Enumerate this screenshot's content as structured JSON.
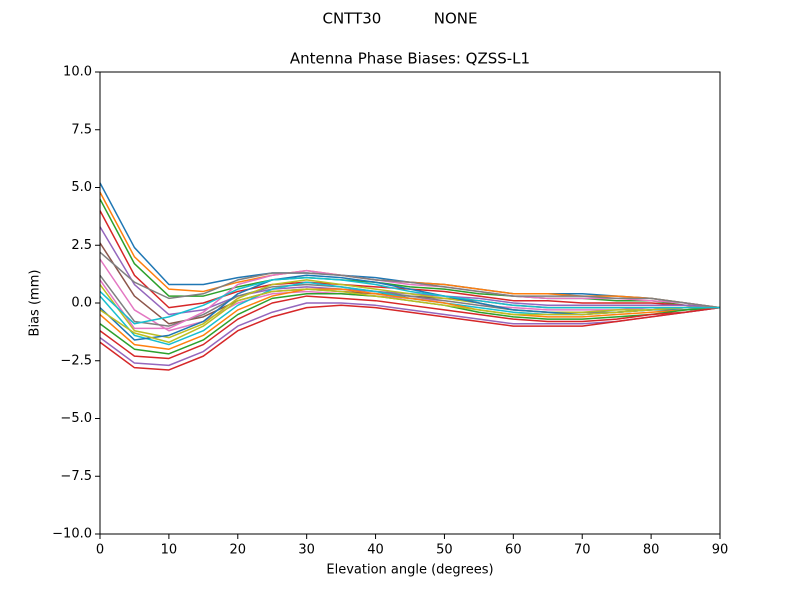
{
  "chart_data": {
    "type": "line",
    "suptitle": "CNTT30           NONE",
    "title": "Antenna Phase Biases: QZSS-L1",
    "xlabel": "Elevation angle (degrees)",
    "ylabel": "Bias (mm)",
    "x": [
      0,
      5,
      10,
      15,
      20,
      25,
      30,
      35,
      40,
      45,
      50,
      55,
      60,
      65,
      70,
      75,
      80,
      85,
      90
    ],
    "xlim": [
      0,
      90
    ],
    "xticks": [
      0,
      10,
      20,
      30,
      40,
      50,
      60,
      70,
      80,
      90
    ],
    "ylim": [
      -10,
      10
    ],
    "yticks": [
      {
        "value": -10,
        "label": "−10.0"
      },
      {
        "value": -7.5,
        "label": "−7.5"
      },
      {
        "value": -5,
        "label": "−5.0"
      },
      {
        "value": -2.5,
        "label": "−2.5"
      },
      {
        "value": 0,
        "label": "0.0"
      },
      {
        "value": 2.5,
        "label": "2.5"
      },
      {
        "value": 5,
        "label": "5.0"
      },
      {
        "value": 7.5,
        "label": "7.5"
      },
      {
        "value": 10,
        "label": "10.0"
      }
    ],
    "grid": false,
    "series": [
      {
        "color": "#1f77b4",
        "values": [
          5.2,
          2.4,
          0.8,
          0.8,
          1.1,
          1.3,
          1.3,
          1.2,
          1.1,
          0.9,
          0.8,
          0.6,
          0.4,
          0.4,
          0.4,
          0.3,
          0.2,
          0.0,
          -0.2
        ]
      },
      {
        "color": "#ff7f0e",
        "values": [
          4.8,
          2.0,
          0.6,
          0.5,
          0.9,
          1.2,
          1.4,
          1.2,
          1.0,
          0.9,
          0.8,
          0.6,
          0.4,
          0.4,
          0.3,
          0.3,
          0.2,
          0.0,
          -0.2
        ]
      },
      {
        "color": "#2ca02c",
        "values": [
          4.5,
          1.7,
          0.3,
          0.3,
          0.7,
          1.0,
          1.1,
          1.0,
          0.9,
          0.7,
          0.6,
          0.4,
          0.3,
          0.2,
          0.2,
          0.1,
          0.1,
          -0.1,
          -0.2
        ]
      },
      {
        "color": "#d62728",
        "values": [
          4.0,
          1.2,
          -0.2,
          0.0,
          0.5,
          0.8,
          0.9,
          0.8,
          0.7,
          0.6,
          0.5,
          0.3,
          0.1,
          0.1,
          0.0,
          0.0,
          0.0,
          -0.1,
          -0.2
        ]
      },
      {
        "color": "#9467bd",
        "values": [
          3.3,
          0.8,
          -0.5,
          -0.3,
          0.3,
          0.6,
          0.7,
          0.6,
          0.5,
          0.4,
          0.3,
          0.2,
          0.0,
          -0.1,
          -0.1,
          -0.1,
          -0.1,
          -0.1,
          -0.2
        ]
      },
      {
        "color": "#8c564b",
        "values": [
          2.6,
          0.3,
          -0.9,
          -0.6,
          0.1,
          0.5,
          0.6,
          0.5,
          0.4,
          0.3,
          0.2,
          0.1,
          -0.1,
          -0.2,
          -0.2,
          -0.2,
          -0.2,
          -0.2,
          -0.2
        ]
      },
      {
        "color": "#e377c2",
        "values": [
          1.9,
          -0.3,
          -1.2,
          -0.8,
          0.0,
          0.4,
          0.5,
          0.4,
          0.3,
          0.2,
          0.1,
          -0.1,
          -0.2,
          -0.3,
          -0.3,
          -0.3,
          -0.2,
          -0.2,
          -0.2
        ]
      },
      {
        "color": "#7f7f7f",
        "values": [
          1.2,
          -0.8,
          -1.0,
          -0.5,
          0.3,
          0.7,
          0.8,
          0.7,
          0.5,
          0.3,
          0.1,
          -0.1,
          -0.3,
          -0.4,
          -0.4,
          -0.4,
          -0.3,
          -0.2,
          -0.2
        ]
      },
      {
        "color": "#bcbd22",
        "values": [
          0.8,
          -1.2,
          -1.5,
          -0.9,
          0.2,
          0.8,
          1.0,
          0.8,
          0.6,
          0.4,
          0.2,
          0.0,
          -0.3,
          -0.4,
          -0.4,
          -0.3,
          -0.3,
          -0.2,
          -0.2
        ]
      },
      {
        "color": "#17becf",
        "values": [
          0.3,
          -1.4,
          -1.8,
          -1.2,
          -0.1,
          0.6,
          0.9,
          0.7,
          0.5,
          0.2,
          0.0,
          -0.2,
          -0.4,
          -0.5,
          -0.5,
          -0.4,
          -0.3,
          -0.2,
          -0.2
        ]
      },
      {
        "color": "#1f77b4",
        "values": [
          -0.2,
          -1.6,
          -1.4,
          -0.8,
          0.4,
          1.0,
          1.2,
          1.1,
          0.9,
          0.6,
          0.3,
          0.0,
          -0.3,
          -0.4,
          -0.5,
          -0.4,
          -0.3,
          -0.3,
          -0.2
        ]
      },
      {
        "color": "#ff7f0e",
        "values": [
          -0.5,
          -1.8,
          -2.0,
          -1.4,
          -0.3,
          0.3,
          0.6,
          0.6,
          0.4,
          0.2,
          0.0,
          -0.3,
          -0.5,
          -0.6,
          -0.6,
          -0.5,
          -0.4,
          -0.3,
          -0.2
        ]
      },
      {
        "color": "#2ca02c",
        "values": [
          -0.9,
          -2.0,
          -2.2,
          -1.6,
          -0.5,
          0.2,
          0.4,
          0.4,
          0.3,
          0.1,
          -0.1,
          -0.4,
          -0.6,
          -0.7,
          -0.7,
          -0.6,
          -0.5,
          -0.3,
          -0.2
        ]
      },
      {
        "color": "#d62728",
        "values": [
          -1.2,
          -2.3,
          -2.4,
          -1.8,
          -0.7,
          0.0,
          0.3,
          0.2,
          0.1,
          -0.1,
          -0.3,
          -0.5,
          -0.7,
          -0.8,
          -0.8,
          -0.7,
          -0.5,
          -0.4,
          -0.2
        ]
      },
      {
        "color": "#9467bd",
        "values": [
          -1.5,
          -2.6,
          -2.7,
          -2.1,
          -1.0,
          -0.4,
          0.0,
          0.0,
          -0.1,
          -0.3,
          -0.5,
          -0.7,
          -0.9,
          -0.9,
          -0.9,
          -0.8,
          -0.6,
          -0.4,
          -0.2
        ]
      },
      {
        "color": "#d62728",
        "values": [
          -1.7,
          -2.8,
          -2.9,
          -2.3,
          -1.2,
          -0.6,
          -0.2,
          -0.1,
          -0.2,
          -0.4,
          -0.6,
          -0.8,
          -1.0,
          -1.0,
          -1.0,
          -0.8,
          -0.6,
          -0.4,
          -0.2
        ]
      },
      {
        "color": "#e377c2",
        "values": [
          1.0,
          -1.1,
          -1.1,
          -0.4,
          0.8,
          1.2,
          1.4,
          1.2,
          1.0,
          0.8,
          0.7,
          0.5,
          0.3,
          0.2,
          0.2,
          0.2,
          0.1,
          0.0,
          -0.2
        ]
      },
      {
        "color": "#7f7f7f",
        "values": [
          2.2,
          0.9,
          0.2,
          0.4,
          1.0,
          1.3,
          1.3,
          1.2,
          1.0,
          0.9,
          0.7,
          0.5,
          0.3,
          0.3,
          0.3,
          0.2,
          0.2,
          0.0,
          -0.2
        ]
      },
      {
        "color": "#bcbd22",
        "values": [
          -0.3,
          -1.3,
          -1.7,
          -1.0,
          0.1,
          0.5,
          0.6,
          0.5,
          0.3,
          0.1,
          -0.1,
          -0.3,
          -0.5,
          -0.5,
          -0.5,
          -0.4,
          -0.3,
          -0.2,
          -0.2
        ]
      },
      {
        "color": "#17becf",
        "values": [
          0.5,
          -0.9,
          -0.6,
          -0.1,
          0.6,
          1.0,
          1.1,
          1.0,
          0.8,
          0.5,
          0.3,
          0.1,
          -0.1,
          -0.2,
          -0.2,
          -0.2,
          -0.2,
          -0.2,
          -0.2
        ]
      }
    ]
  }
}
